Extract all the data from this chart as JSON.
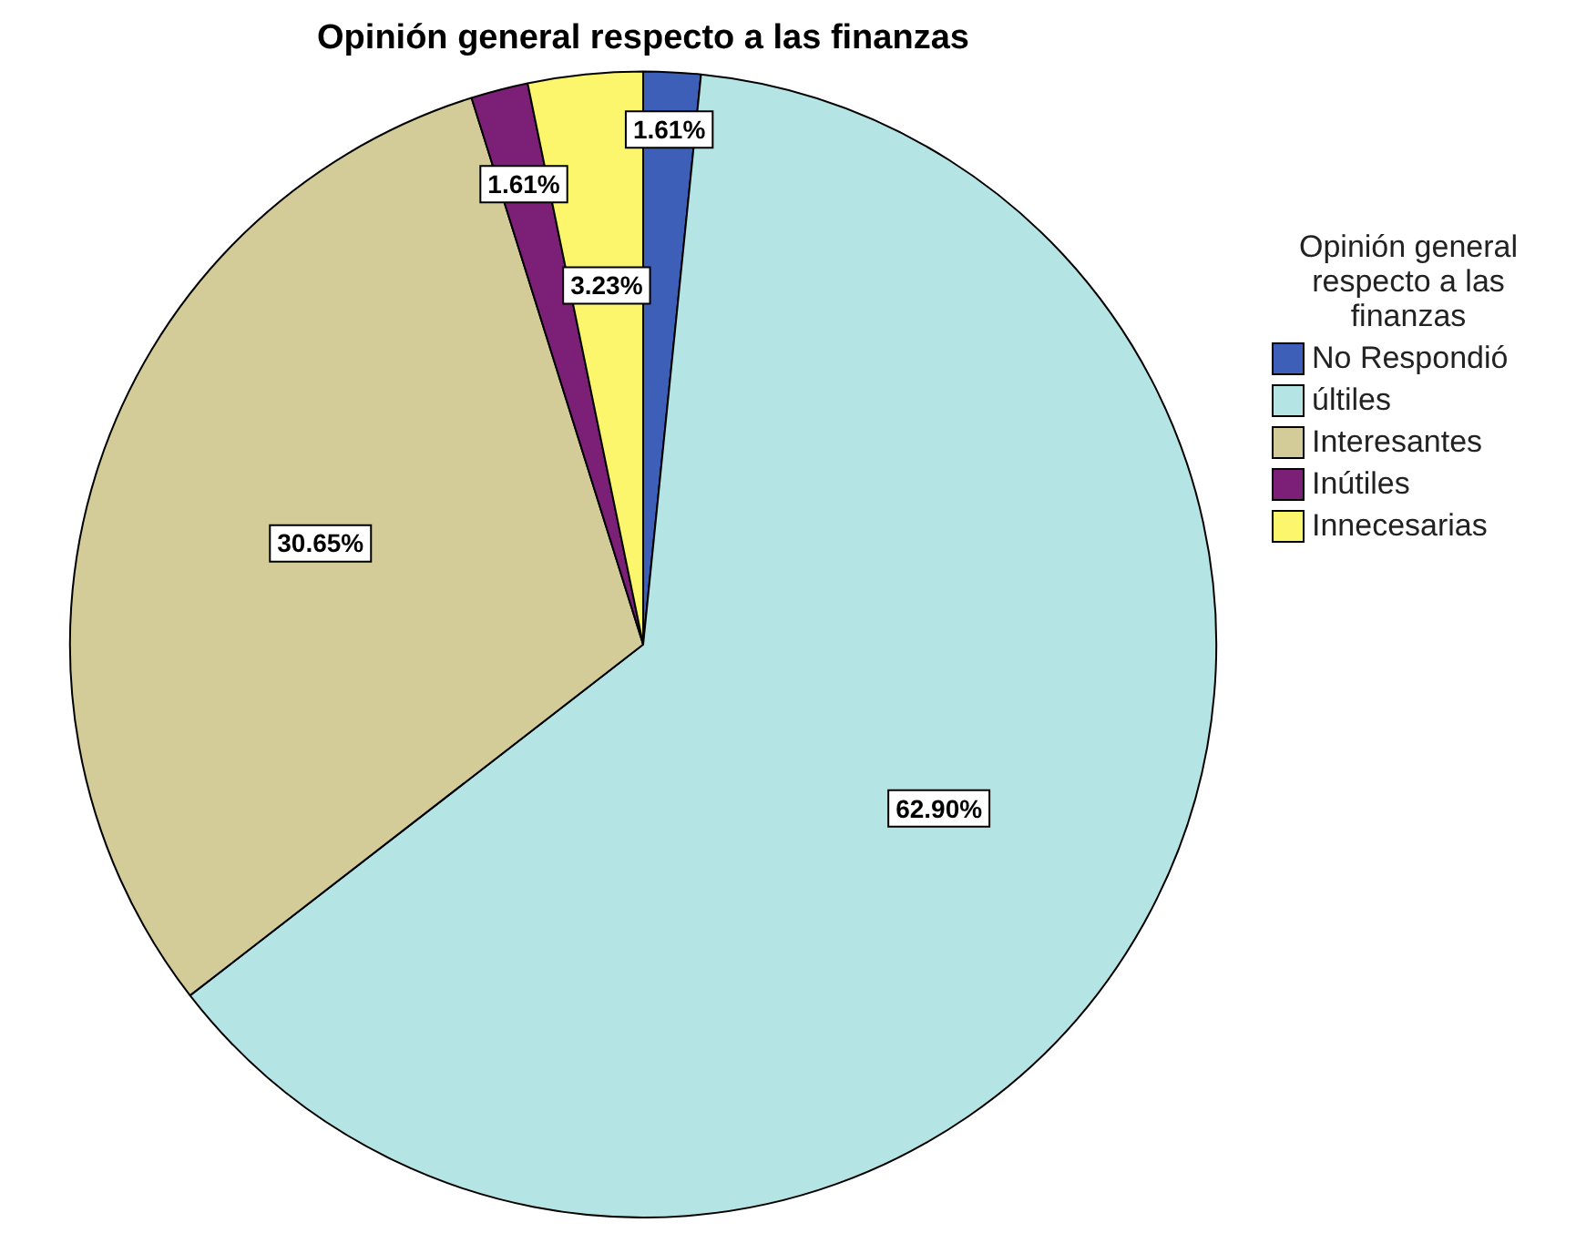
{
  "chart_data": {
    "type": "pie",
    "title": "Opinión general respecto a las finanzas",
    "legend_title": "Opinión general respecto a las finanzas",
    "legend": "right",
    "categories": [
      "No Respondió",
      "últiles",
      "Interesantes",
      "Inútiles",
      "Innecesarias"
    ],
    "values": [
      1.61,
      62.9,
      30.65,
      1.61,
      3.23
    ],
    "value_labels": [
      "1.61%",
      "62.90%",
      "30.65%",
      "1.61%",
      "3.23%"
    ],
    "colors": [
      "#3e5fb8",
      "#b4e4e4",
      "#d3cb98",
      "#7c1f76",
      "#fbf66c"
    ]
  }
}
